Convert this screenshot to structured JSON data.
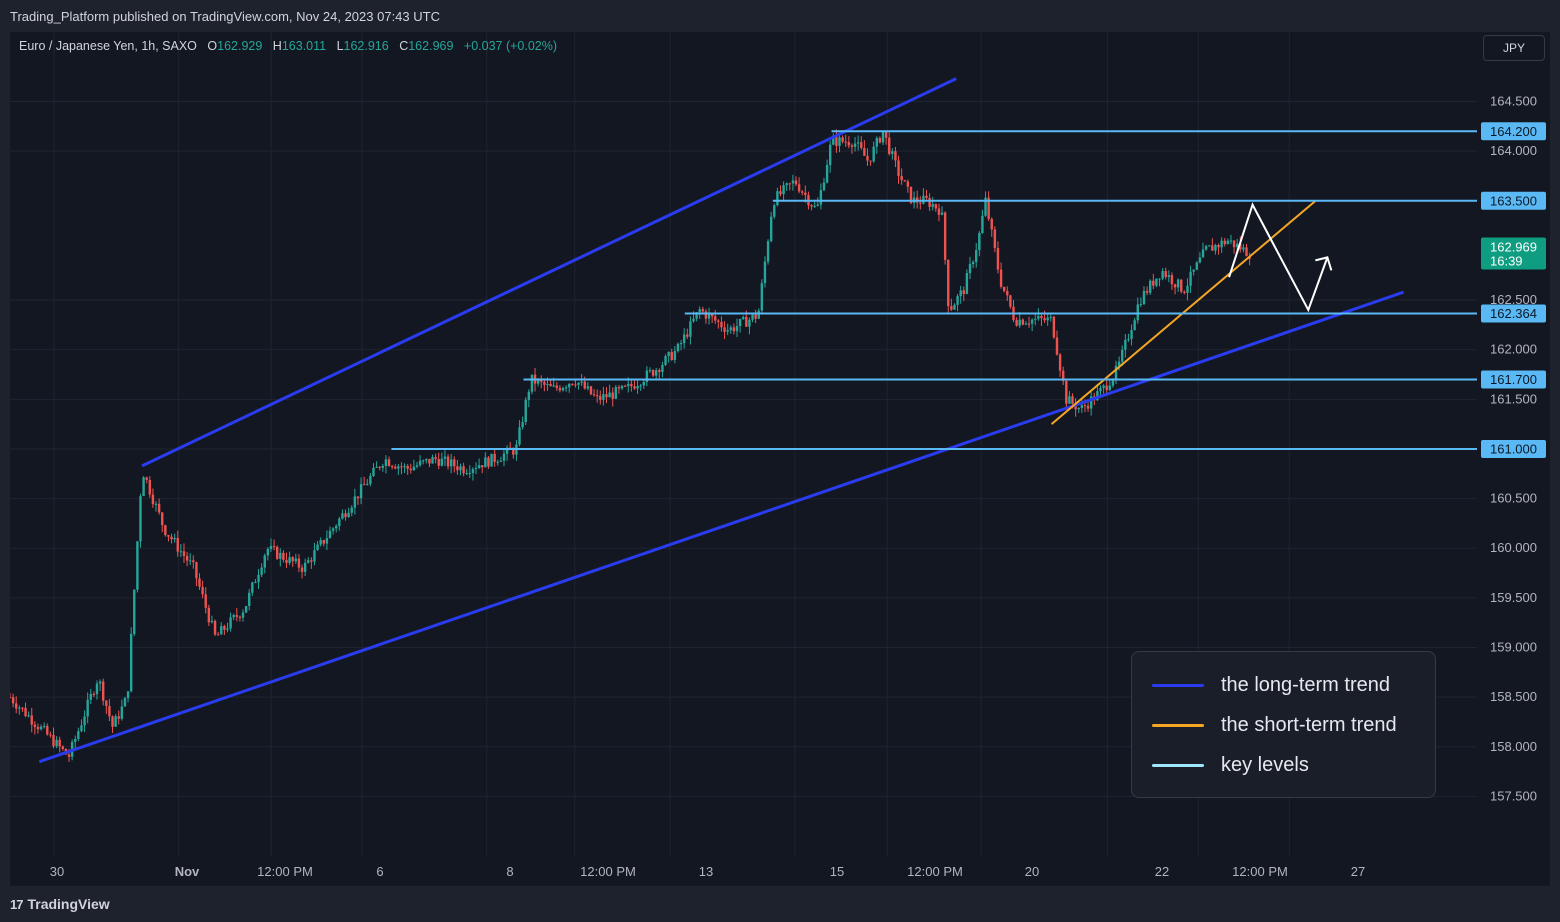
{
  "header": {
    "publish_line": "Trading_Platform published on TradingView.com, Nov 24, 2023 07:43 UTC"
  },
  "ohlc": {
    "symbol": "Euro / Japanese Yen, 1h, SAXO",
    "open_label": "O",
    "open": "162.929",
    "high_label": "H",
    "high": "163.011",
    "low_label": "L",
    "low": "162.916",
    "close_label": "C",
    "close": "162.969",
    "change": "+0.037 (+0.02%)"
  },
  "currency_button": "JPY",
  "footer": {
    "brand": "TradingView",
    "logo_mark": "17"
  },
  "legend": {
    "items": [
      {
        "label": "the long-term trend",
        "color": "#2a3cf0"
      },
      {
        "label": "the short-term trend",
        "color": "#f5a623"
      },
      {
        "label": "key levels",
        "color": "#9ee7ff"
      }
    ]
  },
  "colors": {
    "up": "#26a69a",
    "down": "#ef5350",
    "channel": "#2a3cf0",
    "short_trend": "#f5a623",
    "key_level": "#5ab8f5",
    "projection": "#ffffff"
  },
  "chart_data": {
    "type": "candlestick",
    "title": "Euro / Japanese Yen, 1h, SAXO",
    "ylim": [
      156.9,
      165.2
    ],
    "y_ticks": [
      157.5,
      158.0,
      158.5,
      159.0,
      159.5,
      160.0,
      160.5,
      161.0,
      161.5,
      162.0,
      162.5,
      164.0,
      164.5
    ],
    "y_tick_labels": [
      "157.500",
      "158.000",
      "158.500",
      "159.000",
      "159.500",
      "160.000",
      "160.500",
      "161.000",
      "161.500",
      "162.000",
      "162.500",
      "164.000",
      "164.500"
    ],
    "x_ticks": [
      {
        "label": "30",
        "bold": false,
        "i": 0
      },
      {
        "label": "Nov",
        "bold": true,
        "i": 1
      },
      {
        "label": "12:00 PM",
        "bold": false,
        "i": 2
      },
      {
        "label": "6",
        "bold": false,
        "i": 3
      },
      {
        "label": "8",
        "bold": false,
        "i": 4
      },
      {
        "label": "12:00 PM",
        "bold": false,
        "i": 5
      },
      {
        "label": "13",
        "bold": false,
        "i": 6
      },
      {
        "label": "15",
        "bold": false,
        "i": 7
      },
      {
        "label": "12:00 PM",
        "bold": false,
        "i": 8
      },
      {
        "label": "20",
        "bold": false,
        "i": 9
      },
      {
        "label": "22",
        "bold": false,
        "i": 10
      },
      {
        "label": "12:00 PM",
        "bold": false,
        "i": 11
      },
      {
        "label": "27",
        "bold": false,
        "i": 12
      }
    ],
    "last_price": {
      "value": 162.969,
      "label": "162.969",
      "countdown": "16:39"
    },
    "key_levels": [
      {
        "value": 164.2,
        "label": "164.200",
        "from": 0.56
      },
      {
        "value": 163.5,
        "label": "163.500",
        "from": 0.52
      },
      {
        "value": 162.364,
        "label": "162.364",
        "from": 0.46
      },
      {
        "value": 161.7,
        "label": "161.700",
        "from": 0.35
      },
      {
        "value": 161.0,
        "label": "161.000",
        "from": 0.26
      }
    ],
    "channel_upper": [
      [
        0.09,
        160.83
      ],
      [
        0.645,
        164.73
      ]
    ],
    "channel_lower": [
      [
        0.02,
        157.85
      ],
      [
        0.95,
        162.58
      ]
    ],
    "short_trend": [
      [
        0.71,
        161.25
      ],
      [
        0.89,
        163.5
      ]
    ],
    "projection": [
      [
        0.831,
        162.73
      ],
      [
        0.847,
        163.46
      ],
      [
        0.885,
        162.4
      ],
      [
        0.898,
        162.93
      ]
    ],
    "waypoints": [
      [
        0.0,
        158.5
      ],
      [
        0.02,
        158.2
      ],
      [
        0.04,
        157.9
      ],
      [
        0.06,
        158.7
      ],
      [
        0.07,
        158.2
      ],
      [
        0.08,
        158.5
      ],
      [
        0.09,
        160.8
      ],
      [
        0.105,
        160.2
      ],
      [
        0.125,
        159.8
      ],
      [
        0.14,
        159.1
      ],
      [
        0.16,
        159.4
      ],
      [
        0.175,
        160.0
      ],
      [
        0.2,
        159.8
      ],
      [
        0.22,
        160.2
      ],
      [
        0.235,
        160.5
      ],
      [
        0.255,
        160.9
      ],
      [
        0.27,
        160.8
      ],
      [
        0.29,
        160.9
      ],
      [
        0.31,
        160.8
      ],
      [
        0.33,
        160.9
      ],
      [
        0.345,
        161.0
      ],
      [
        0.355,
        161.7
      ],
      [
        0.37,
        161.6
      ],
      [
        0.385,
        161.7
      ],
      [
        0.4,
        161.5
      ],
      [
        0.42,
        161.6
      ],
      [
        0.44,
        161.8
      ],
      [
        0.455,
        162.0
      ],
      [
        0.47,
        162.4
      ],
      [
        0.49,
        162.2
      ],
      [
        0.51,
        162.35
      ],
      [
        0.52,
        163.5
      ],
      [
        0.535,
        163.7
      ],
      [
        0.55,
        163.4
      ],
      [
        0.56,
        164.1
      ],
      [
        0.575,
        164.1
      ],
      [
        0.585,
        163.9
      ],
      [
        0.595,
        164.2
      ],
      [
        0.605,
        163.8
      ],
      [
        0.615,
        163.5
      ],
      [
        0.625,
        163.5
      ],
      [
        0.635,
        163.4
      ],
      [
        0.64,
        162.4
      ],
      [
        0.65,
        162.6
      ],
      [
        0.66,
        163.1
      ],
      [
        0.665,
        163.5
      ],
      [
        0.675,
        162.7
      ],
      [
        0.685,
        162.3
      ],
      [
        0.695,
        162.3
      ],
      [
        0.71,
        162.3
      ],
      [
        0.72,
        161.5
      ],
      [
        0.73,
        161.4
      ],
      [
        0.745,
        161.6
      ],
      [
        0.755,
        161.8
      ],
      [
        0.77,
        162.5
      ],
      [
        0.785,
        162.8
      ],
      [
        0.8,
        162.6
      ],
      [
        0.815,
        163.0
      ],
      [
        0.83,
        163.1
      ],
      [
        0.845,
        162.97
      ]
    ]
  }
}
